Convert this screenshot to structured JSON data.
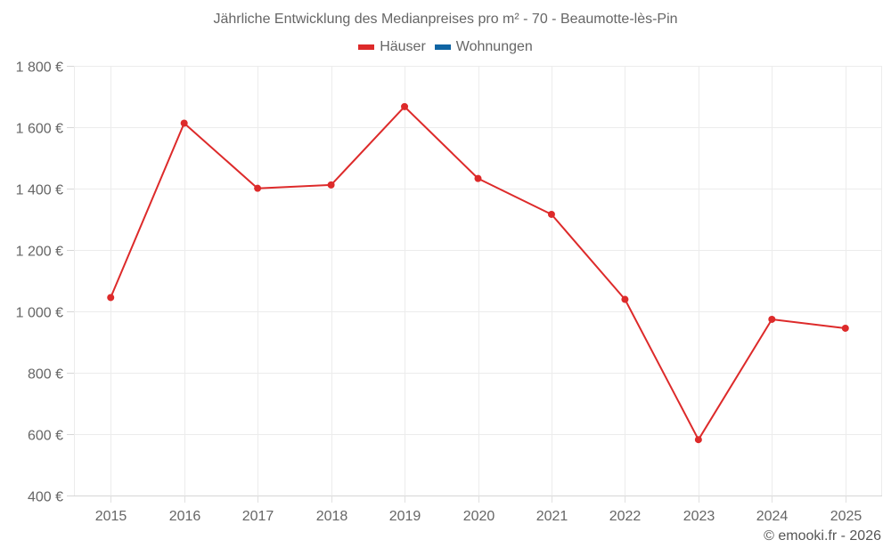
{
  "chart_data": {
    "type": "line",
    "title": "Jährliche Entwicklung des Medianpreises pro m² - 70 - Beaumotte-lès-Pin",
    "xlabel": "",
    "ylabel": "",
    "categories": [
      "2015",
      "2016",
      "2017",
      "2018",
      "2019",
      "2020",
      "2021",
      "2022",
      "2023",
      "2024",
      "2025"
    ],
    "series": [
      {
        "name": "Häuser",
        "color": "#dd2a2a",
        "values": [
          1045,
          1613,
          1401,
          1412,
          1667,
          1433,
          1316,
          1039,
          582,
          974,
          945
        ]
      },
      {
        "name": "Wohnungen",
        "color": "#0f64a3",
        "values": []
      }
    ],
    "ylim": [
      400,
      1800
    ],
    "yticks": [
      400,
      600,
      800,
      1000,
      1200,
      1400,
      1600,
      1800
    ],
    "ytick_labels": [
      "400 €",
      "600 €",
      "800 €",
      "1 000 €",
      "1 200 €",
      "1 400 €",
      "1 600 €",
      "1 800 €"
    ],
    "grid": true,
    "legend_position": "top"
  },
  "legend": {
    "items": [
      {
        "label": "Häuser",
        "color": "#dd2a2a"
      },
      {
        "label": "Wohnungen",
        "color": "#0f64a3"
      }
    ]
  },
  "footer": {
    "credit": "© emooki.fr - 2026"
  }
}
